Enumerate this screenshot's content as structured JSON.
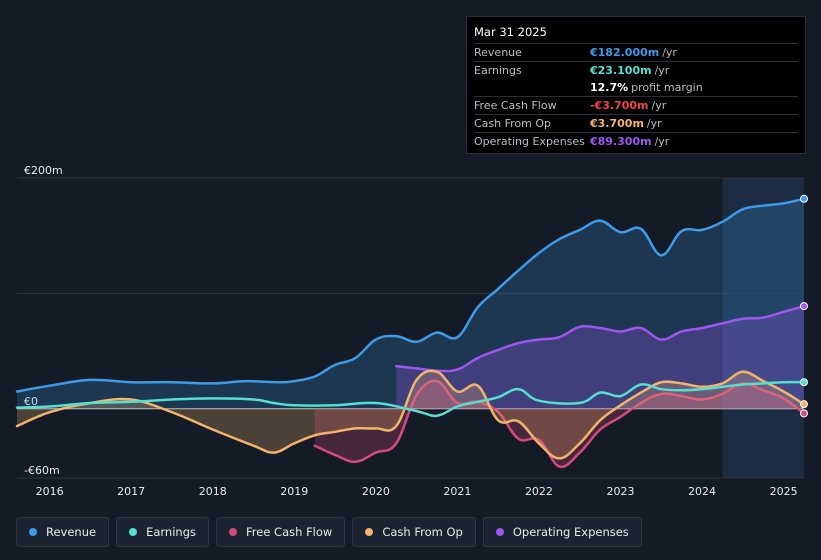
{
  "tooltip": {
    "date": "Mar 31 2025",
    "rows": [
      {
        "label": "Revenue",
        "value": "€182.000m",
        "unit": "/yr",
        "color": "#3d9be9"
      },
      {
        "label": "Earnings",
        "value": "€23.100m",
        "unit": "/yr",
        "color": "#54e0d0"
      },
      {
        "label": "",
        "value": "12.7%",
        "unit": "profit margin",
        "color": "#ffffff"
      },
      {
        "label": "Free Cash Flow",
        "value": "-€3.700m",
        "unit": "/yr",
        "color": "#f0444f"
      },
      {
        "label": "Cash From Op",
        "value": "€3.700m",
        "unit": "/yr",
        "color": "#f2b36a"
      },
      {
        "label": "Operating Expenses",
        "value": "€89.300m",
        "unit": "/yr",
        "color": "#9d56f0"
      }
    ]
  },
  "legend": [
    {
      "label": "Revenue",
      "color": "#3d9be9"
    },
    {
      "label": "Earnings",
      "color": "#54e0d0"
    },
    {
      "label": "Free Cash Flow",
      "color": "#d6497d"
    },
    {
      "label": "Cash From Op",
      "color": "#f2b36a"
    },
    {
      "label": "Operating Expenses",
      "color": "#9d56f0"
    }
  ],
  "chart_data": {
    "type": "area",
    "title": "",
    "ylim": [
      -60,
      200
    ],
    "yticks": [
      {
        "value": 200,
        "label": "€200m"
      },
      {
        "value": 0,
        "label": "€0"
      },
      {
        "value": -60,
        "label": "-€60m"
      }
    ],
    "xlim": [
      2015.6,
      2025.25
    ],
    "xticks": [
      2016,
      2017,
      2018,
      2019,
      2020,
      2021,
      2022,
      2023,
      2024,
      2025
    ],
    "highlight_start": 2024.25,
    "series": [
      {
        "name": "Revenue",
        "color": "#3d9be9",
        "x": [
          2015.6,
          2016.0,
          2016.5,
          2017.0,
          2017.5,
          2018.0,
          2018.4,
          2018.8,
          2019.0,
          2019.25,
          2019.5,
          2019.75,
          2020.0,
          2020.25,
          2020.5,
          2020.75,
          2021.0,
          2021.25,
          2021.5,
          2021.75,
          2022.0,
          2022.25,
          2022.5,
          2022.75,
          2023.0,
          2023.25,
          2023.5,
          2023.75,
          2024.0,
          2024.25,
          2024.5,
          2024.75,
          2025.0,
          2025.25
        ],
        "y": [
          15,
          20,
          25,
          23,
          23,
          22,
          24,
          23,
          24,
          28,
          38,
          44,
          60,
          63,
          58,
          66,
          62,
          88,
          104,
          120,
          135,
          147,
          155,
          163,
          153,
          156,
          133,
          154,
          155,
          162,
          173,
          176,
          178,
          182
        ]
      },
      {
        "name": "Operating Expenses",
        "color": "#9d56f0",
        "x": [
          2020.25,
          2020.5,
          2020.75,
          2021.0,
          2021.25,
          2021.5,
          2021.75,
          2022.0,
          2022.25,
          2022.5,
          2022.75,
          2023.0,
          2023.25,
          2023.5,
          2023.75,
          2024.0,
          2024.25,
          2024.5,
          2024.75,
          2025.0,
          2025.25
        ],
        "y": [
          37,
          35,
          33,
          34,
          44,
          51,
          57,
          60,
          62,
          71,
          70,
          67,
          70,
          60,
          67,
          70,
          74,
          78,
          79,
          84,
          89
        ]
      },
      {
        "name": "Earnings",
        "color": "#54e0d0",
        "x": [
          2015.6,
          2016.0,
          2016.5,
          2017.0,
          2017.5,
          2018.0,
          2018.5,
          2018.75,
          2019.0,
          2019.5,
          2020.0,
          2020.5,
          2020.75,
          2021.0,
          2021.25,
          2021.5,
          2021.75,
          2022.0,
          2022.5,
          2022.75,
          2023.0,
          2023.25,
          2023.5,
          2023.75,
          2024.0,
          2024.25,
          2024.5,
          2024.75,
          2025.0,
          2025.25
        ],
        "y": [
          1,
          2,
          5,
          6,
          8,
          9,
          8,
          5,
          3,
          3,
          5,
          -2,
          -6,
          2,
          6,
          10,
          17,
          7,
          5,
          14,
          11,
          21,
          17,
          16,
          17,
          19,
          21,
          22,
          23,
          23
        ]
      },
      {
        "name": "Free Cash Flow",
        "color": "#d6497d",
        "x": [
          2019.25,
          2019.5,
          2019.75,
          2020.0,
          2020.25,
          2020.5,
          2020.75,
          2021.0,
          2021.25,
          2021.5,
          2021.75,
          2022.0,
          2022.25,
          2022.5,
          2022.75,
          2023.0,
          2023.25,
          2023.5,
          2023.75,
          2024.0,
          2024.25,
          2024.5,
          2024.75,
          2025.0,
          2025.25
        ],
        "y": [
          -32,
          -40,
          -46,
          -38,
          -30,
          12,
          24,
          5,
          6,
          -3,
          -26,
          -27,
          -50,
          -38,
          -18,
          -7,
          5,
          13,
          11,
          8,
          13,
          22,
          16,
          9,
          -4
        ]
      },
      {
        "name": "Cash From Op",
        "color": "#f2b36a",
        "x": [
          2015.6,
          2016.0,
          2016.5,
          2017.0,
          2017.5,
          2018.0,
          2018.5,
          2018.75,
          2019.0,
          2019.25,
          2019.5,
          2019.75,
          2020.0,
          2020.25,
          2020.5,
          2020.75,
          2021.0,
          2021.25,
          2021.5,
          2021.75,
          2022.0,
          2022.25,
          2022.5,
          2022.75,
          2023.0,
          2023.25,
          2023.5,
          2023.75,
          2024.0,
          2024.25,
          2024.5,
          2024.75,
          2025.0,
          2025.25
        ],
        "y": [
          -15,
          -3,
          5,
          8,
          -3,
          -18,
          -32,
          -38,
          -30,
          -23,
          -20,
          -17,
          -17,
          -15,
          25,
          32,
          15,
          20,
          -10,
          -11,
          -30,
          -43,
          -30,
          -10,
          3,
          14,
          23,
          22,
          19,
          22,
          32,
          24,
          15,
          4
        ]
      }
    ]
  }
}
